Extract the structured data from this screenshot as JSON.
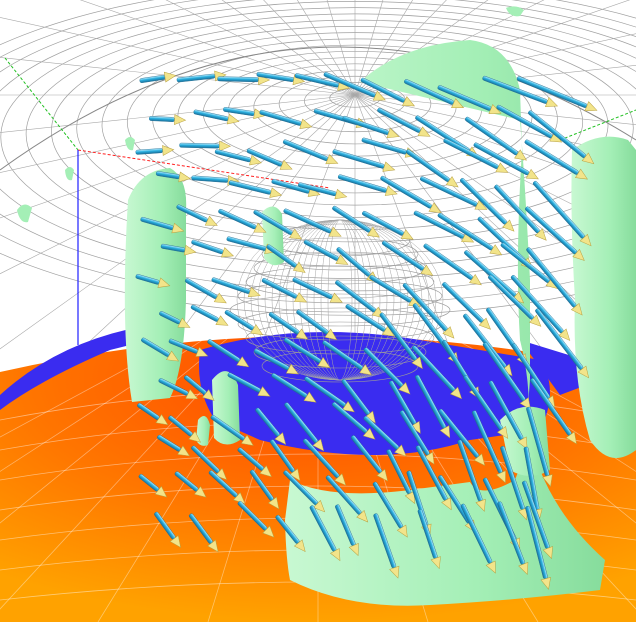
{
  "scene": {
    "background": "#ffffff",
    "colors": {
      "ground_dark": "#ff6a00",
      "ground_light": "#ff9a00",
      "ground_hot": "#ff3a00",
      "floor_blue": "#3a2cf0",
      "floor_blue_dark": "#2a20c8",
      "blob_green": "#a8f0b8",
      "blob_green_edge": "#7fdc98",
      "wire_grid": "#9a9a9a",
      "arrow_shaft": "#2aa8d8",
      "arrow_shaft_light": "#8ad8f0",
      "arrow_head": "#f2e48a",
      "axis_red": "#ff2020",
      "axis_green": "#20c020",
      "axis_blue": "#2020ff"
    },
    "glyph": "arrow-vector-icon",
    "blobs": "isosurface-blob"
  }
}
